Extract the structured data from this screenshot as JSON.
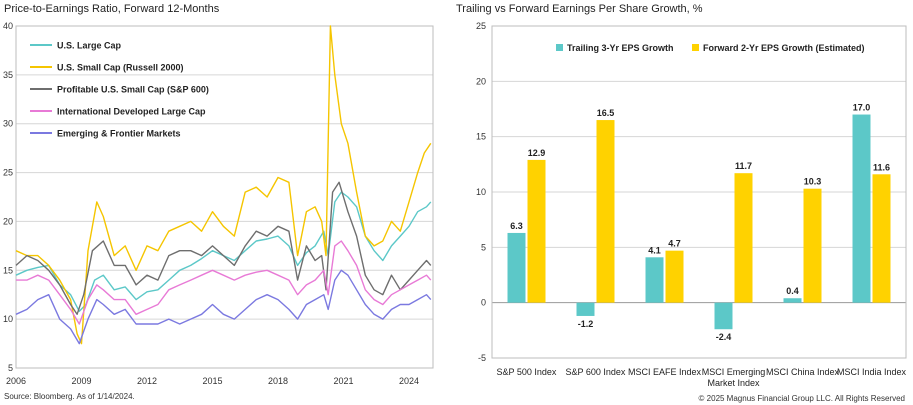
{
  "left_chart": {
    "title": "Price-to-Earnings Ratio, Forward 12-Months",
    "source": "Source: Bloomberg. As of 1/14/2024.",
    "colors": {
      "large_cap": "#5cc8c8",
      "small_cap_r2000": "#f5c500",
      "small_cap_sp600": "#6e6e6e",
      "intl_developed": "#e87ad6",
      "emerging": "#7b79e0"
    }
  },
  "right_chart": {
    "title": "Trailing vs Forward Earnings Per Share Growth, %",
    "copyright": "© 2025 Magnus Financial Group LLC. All Rights Reserved",
    "colors": {
      "trailing": "#5cc8c8",
      "forward": "#ffd200"
    }
  },
  "chart_data": [
    {
      "type": "line",
      "title": "Price-to-Earnings Ratio, Forward 12-Months",
      "x_ticks": [
        "2006",
        "2009",
        "2012",
        "2015",
        "2018",
        "2021",
        "2024"
      ],
      "xlim": [
        2006,
        2025.1
      ],
      "ylim": [
        5,
        40
      ],
      "y_ticks": [
        "5",
        "10",
        "15",
        "20",
        "25",
        "30",
        "35",
        "40"
      ],
      "grid": "horizontal",
      "legend": "top-left",
      "series": [
        {
          "name": "U.S. Large Cap",
          "x": [
            2006,
            2006.5,
            2007,
            2007.5,
            2008,
            2008.5,
            2008.9,
            2009.2,
            2009.6,
            2010,
            2010.5,
            2011,
            2011.5,
            2012,
            2012.5,
            2013,
            2013.5,
            2014,
            2014.5,
            2015,
            2015.5,
            2016,
            2016.5,
            2017,
            2017.5,
            2018,
            2018.5,
            2018.9,
            2019.3,
            2019.7,
            2020.1,
            2020.3,
            2020.6,
            2020.9,
            2021.2,
            2021.6,
            2022,
            2022.4,
            2022.8,
            2023.2,
            2023.6,
            2024,
            2024.4,
            2024.8,
            2025
          ],
          "y": [
            14.5,
            15,
            15.3,
            15.5,
            13.5,
            12.5,
            10.8,
            11.5,
            14,
            14.5,
            13,
            13.3,
            12,
            12.8,
            13,
            14,
            15,
            15.5,
            16.2,
            17,
            16.5,
            16,
            17,
            18,
            18.2,
            18.5,
            17.5,
            15.5,
            16.8,
            17.5,
            19,
            16.5,
            22,
            23,
            22.5,
            21.5,
            18.5,
            17,
            16,
            17.5,
            18.5,
            19.5,
            21,
            21.5,
            22
          ]
        },
        {
          "name": "U.S. Small Cap (Russell 2000)",
          "x": [
            2006,
            2006.5,
            2007,
            2007.5,
            2008,
            2008.5,
            2008.8,
            2009,
            2009.3,
            2009.7,
            2010,
            2010.5,
            2011,
            2011.5,
            2012,
            2012.5,
            2013,
            2013.5,
            2014,
            2014.5,
            2015,
            2015.5,
            2016,
            2016.5,
            2017,
            2017.5,
            2018,
            2018.5,
            2018.9,
            2019.3,
            2019.7,
            2020,
            2020.2,
            2020.4,
            2020.6,
            2020.9,
            2021.2,
            2021.6,
            2022,
            2022.4,
            2022.8,
            2023.2,
            2023.6,
            2024,
            2024.4,
            2024.7,
            2025
          ],
          "y": [
            17,
            16.5,
            16.5,
            15.5,
            14,
            12,
            8.5,
            7.5,
            17,
            22,
            20.5,
            16.5,
            17.5,
            15,
            17.5,
            17,
            19,
            19.5,
            20,
            19,
            21,
            19.5,
            18.5,
            23,
            23.5,
            22.5,
            24.5,
            24,
            16.5,
            21,
            21.5,
            20,
            16.5,
            40,
            35,
            30,
            28,
            23,
            18.5,
            17.5,
            18,
            20,
            19,
            22,
            25,
            27,
            28
          ]
        },
        {
          "name": "Profitable U.S. Small Cap (S&P 600)",
          "x": [
            2006,
            2006.5,
            2007,
            2007.5,
            2008,
            2008.5,
            2008.8,
            2009.1,
            2009.5,
            2010,
            2010.5,
            2011,
            2011.5,
            2012,
            2012.5,
            2013,
            2013.5,
            2014,
            2014.5,
            2015,
            2015.5,
            2016,
            2016.5,
            2017,
            2017.5,
            2018,
            2018.5,
            2018.9,
            2019.3,
            2019.7,
            2020,
            2020.2,
            2020.5,
            2020.8,
            2021.2,
            2021.6,
            2022,
            2022.4,
            2022.8,
            2023.2,
            2023.6,
            2024,
            2024.4,
            2024.8,
            2025
          ],
          "y": [
            15.5,
            16.5,
            16,
            15,
            13.5,
            11.5,
            10.5,
            12.5,
            17,
            18,
            15.5,
            15.5,
            13.5,
            14.5,
            14,
            16.5,
            17,
            17,
            16.5,
            17.5,
            16.5,
            15.5,
            17.5,
            19,
            18.5,
            19.5,
            19,
            14,
            17.5,
            16,
            16.5,
            13,
            23,
            24,
            21,
            18.5,
            14.5,
            13,
            12.5,
            14.5,
            13,
            14,
            15,
            16,
            15.5
          ]
        },
        {
          "name": "International Developed Large Cap",
          "x": [
            2006,
            2006.5,
            2007,
            2007.5,
            2008,
            2008.5,
            2008.9,
            2009.3,
            2009.7,
            2010,
            2010.5,
            2011,
            2011.5,
            2012,
            2012.5,
            2013,
            2013.5,
            2014,
            2014.5,
            2015,
            2015.5,
            2016,
            2016.5,
            2017,
            2017.5,
            2018,
            2018.5,
            2018.9,
            2019.3,
            2019.7,
            2020.1,
            2020.3,
            2020.6,
            2020.9,
            2021.2,
            2021.6,
            2022,
            2022.4,
            2022.8,
            2023.2,
            2023.6,
            2024,
            2024.4,
            2024.8,
            2025
          ],
          "y": [
            14,
            14,
            14.5,
            14,
            12.5,
            11,
            9.5,
            12,
            13.5,
            13,
            12,
            12,
            10.5,
            11,
            11.5,
            13,
            13.5,
            14,
            14.5,
            15,
            14.5,
            14,
            14.5,
            14.8,
            15,
            14.5,
            14,
            12.5,
            13.5,
            14,
            15,
            12.5,
            17.5,
            18,
            17,
            15.5,
            13,
            12,
            11.5,
            12.5,
            13,
            13.5,
            14,
            14.5,
            14
          ]
        },
        {
          "name": "Emerging & Frontier Markets",
          "x": [
            2006,
            2006.5,
            2007,
            2007.5,
            2008,
            2008.5,
            2008.9,
            2009.3,
            2009.7,
            2010,
            2010.5,
            2011,
            2011.5,
            2012,
            2012.5,
            2013,
            2013.5,
            2014,
            2014.5,
            2015,
            2015.5,
            2016,
            2016.5,
            2017,
            2017.5,
            2018,
            2018.5,
            2018.9,
            2019.3,
            2019.7,
            2020.1,
            2020.3,
            2020.6,
            2020.9,
            2021.2,
            2021.6,
            2022,
            2022.4,
            2022.8,
            2023.2,
            2023.6,
            2024,
            2024.4,
            2024.8,
            2025
          ],
          "y": [
            10.5,
            11,
            12,
            12.5,
            10,
            9,
            7.5,
            10,
            12,
            11.5,
            10.5,
            11,
            9.5,
            9.5,
            9.5,
            10,
            9.5,
            10,
            10.5,
            11.5,
            10.5,
            10,
            11,
            12,
            12.5,
            12,
            11,
            10,
            11.5,
            12,
            12.5,
            11,
            14,
            15,
            14.5,
            13,
            11.5,
            10.5,
            10,
            11,
            11.5,
            11.5,
            12,
            12.5,
            12
          ]
        }
      ]
    },
    {
      "type": "bar",
      "title": "Trailing vs Forward Earnings Per Share Growth, %",
      "categories": [
        "S&P 500 Index",
        "S&P 600 Index",
        "MSCI EAFE Index",
        "MSCI Emerging Market Index",
        "MSCI China Index",
        "MSCI India Index"
      ],
      "series": [
        {
          "name": "Trailing 3-Yr EPS Growth",
          "values": [
            6.3,
            -1.2,
            4.1,
            -2.4,
            0.4,
            17.0
          ],
          "labels": [
            "6.3",
            "-1.2",
            "4.1",
            "-2.4",
            "0.4",
            "17.0"
          ]
        },
        {
          "name": "Forward 2-Yr EPS Growth (Estimated)",
          "values": [
            12.9,
            16.5,
            4.7,
            11.7,
            10.3,
            11.6
          ],
          "labels": [
            "12.9",
            "16.5",
            "4.7",
            "11.7",
            "10.3",
            "11.6"
          ]
        }
      ],
      "ylim": [
        -5,
        25
      ],
      "y_ticks": [
        "-5",
        "0",
        "5",
        "10",
        "15",
        "20",
        "25"
      ],
      "grid": "horizontal",
      "legend": "top"
    }
  ]
}
